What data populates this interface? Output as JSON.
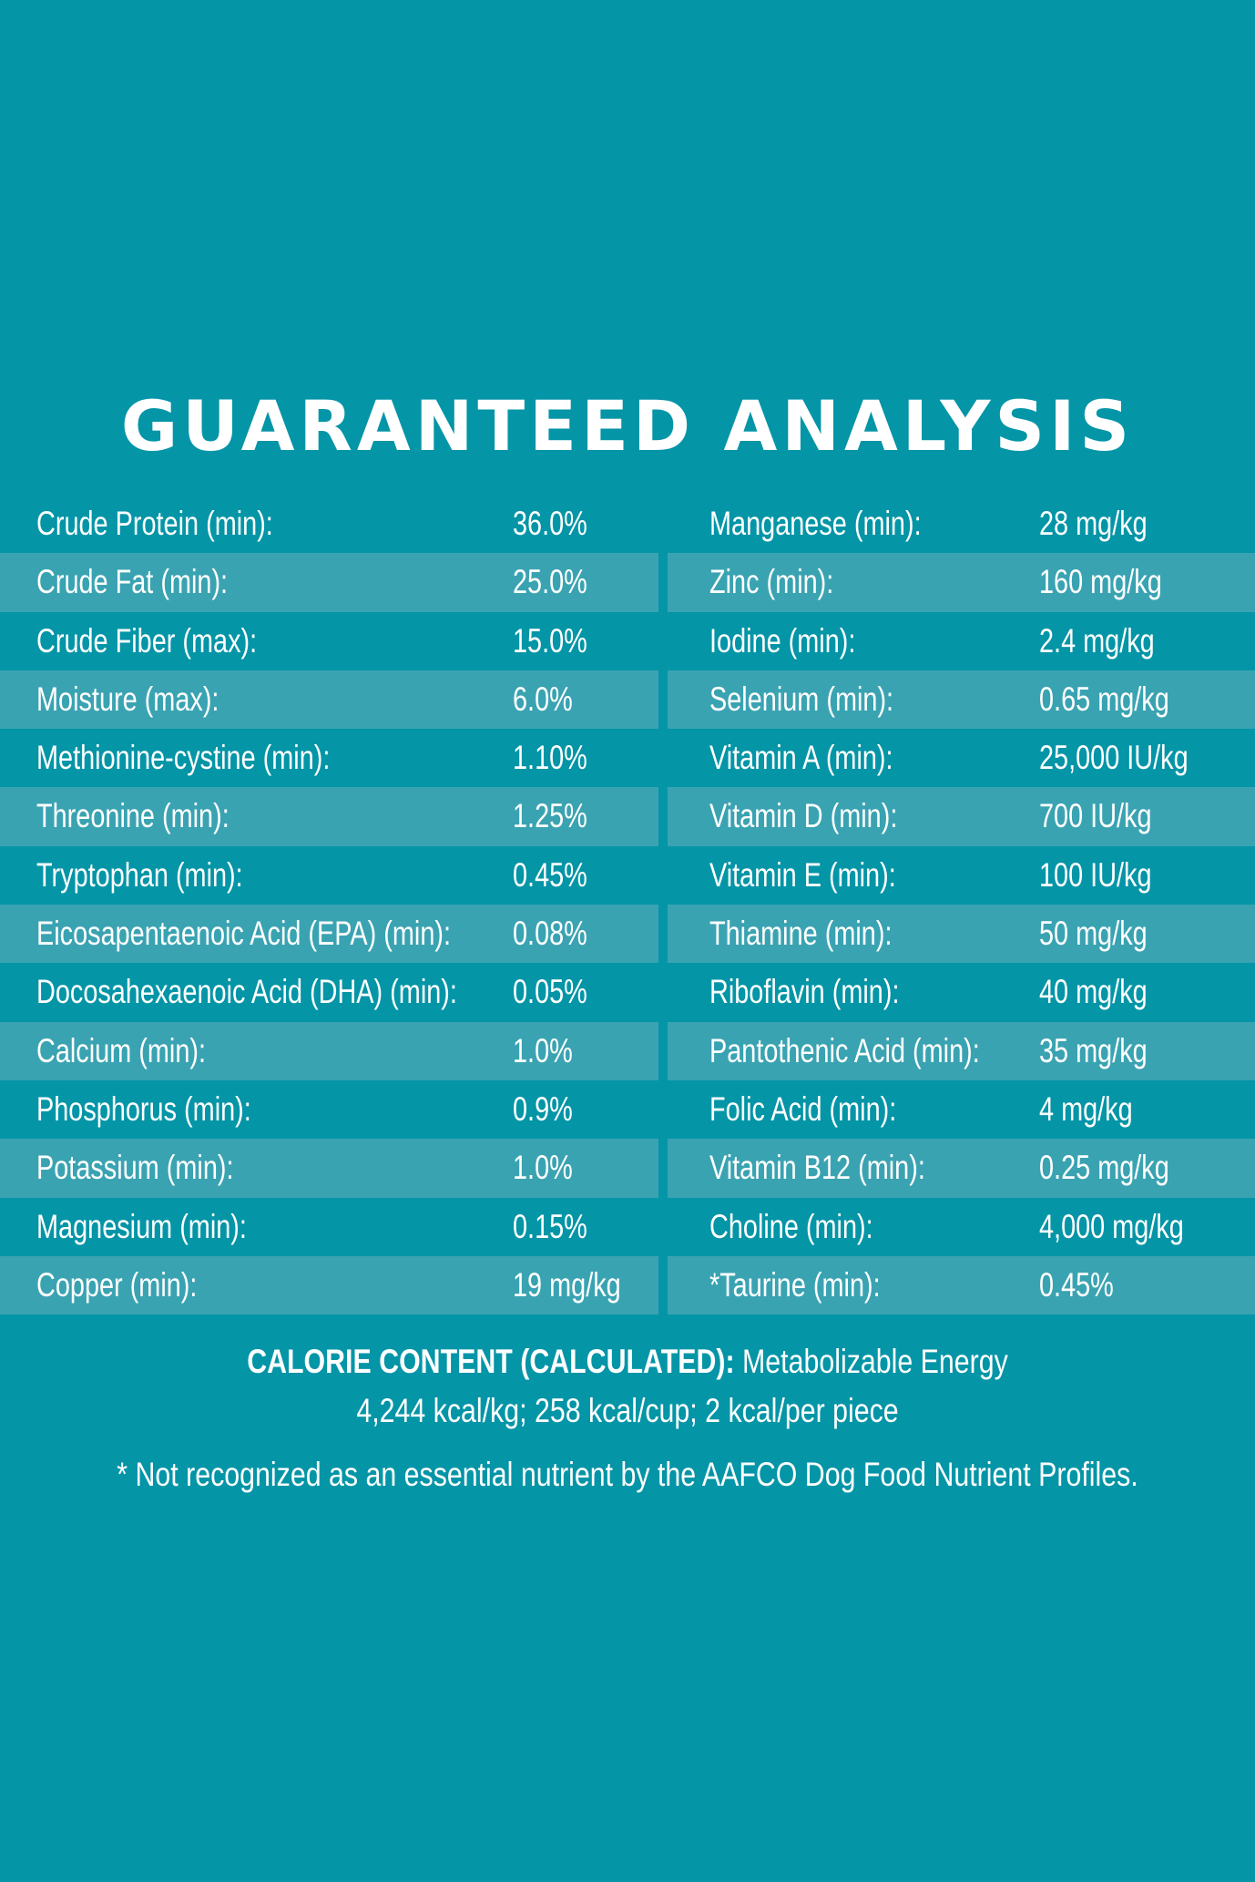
{
  "title": "GUARANTEED ANALYSIS",
  "left_column": [
    {
      "name": "Crude Protein (min):",
      "value": "36.0%"
    },
    {
      "name": "Crude Fat (min):",
      "value": "25.0%"
    },
    {
      "name": "Crude Fiber (max):",
      "value": "15.0%"
    },
    {
      "name": "Moisture (max):",
      "value": "6.0%"
    },
    {
      "name": "Methionine-cystine (min):",
      "value": "1.10%"
    },
    {
      "name": "Threonine (min):",
      "value": "1.25%"
    },
    {
      "name": "Tryptophan (min):",
      "value": "0.45%"
    },
    {
      "name": "Eicosapentaenoic Acid (EPA) (min):",
      "value": "0.08%"
    },
    {
      "name": "Docosahexaenoic Acid (DHA) (min):",
      "value": "0.05%"
    },
    {
      "name": "Calcium (min):",
      "value": "1.0%"
    },
    {
      "name": "Phosphorus (min):",
      "value": "0.9%"
    },
    {
      "name": "Potassium (min):",
      "value": "1.0%"
    },
    {
      "name": "Magnesium (min):",
      "value": "0.15%"
    },
    {
      "name": "Copper (min):",
      "value": "19 mg/kg"
    }
  ],
  "right_column": [
    {
      "name": "Manganese (min):",
      "value": "28 mg/kg"
    },
    {
      "name": "Zinc (min):",
      "value": "160 mg/kg"
    },
    {
      "name": "Iodine (min):",
      "value": "2.4 mg/kg"
    },
    {
      "name": "Selenium  (min):",
      "value": "0.65 mg/kg"
    },
    {
      "name": "Vitamin A (min):",
      "value": "25,000 IU/kg"
    },
    {
      "name": "Vitamin D (min):",
      "value": "700 IU/kg"
    },
    {
      "name": "Vitamin E (min):",
      "value": "100 IU/kg"
    },
    {
      "name": "Thiamine (min):",
      "value": "50 mg/kg"
    },
    {
      "name": "Riboflavin (min):",
      "value": "40 mg/kg"
    },
    {
      "name": "Pantothenic Acid (min):",
      "value": "35 mg/kg"
    },
    {
      "name": "Folic Acid (min):",
      "value": "4 mg/kg"
    },
    {
      "name": "Vitamin B12 (min):",
      "value": "0.25 mg/kg"
    },
    {
      "name": "Choline (min):",
      "value": "4,000 mg/kg"
    },
    {
      "name": "*Taurine (min):",
      "value": "0.45%"
    }
  ],
  "calorie": {
    "label": "CALORIE CONTENT (CALCULATED):",
    "text_1": " Metabolizable Energy",
    "text_2": "4,244 kcal/kg; 258 kcal/cup; 2 kcal/per piece"
  },
  "footnote": "* Not recognized as an essential nutrient by the AAFCO Dog Food Nutrient Profiles.",
  "colors": {
    "background": "#0495a7",
    "stripe": "#3aa3b2",
    "text": "#ffffff"
  }
}
